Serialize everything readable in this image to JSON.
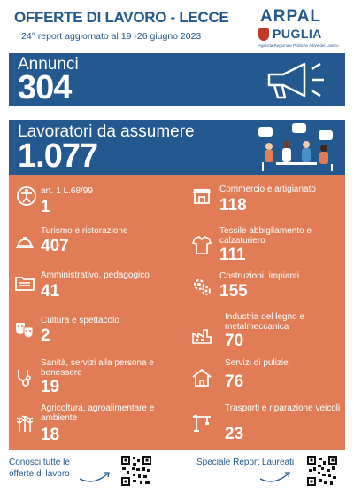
{
  "header": {
    "title": "OFFERTE DI LAVORO - LECCE",
    "subtitle": "24° report aggiornato al 19 -26 giugno 2023",
    "logo_arpal": "ARPAL",
    "logo_puglia": "PUGLIA",
    "logo_sub": "Agenzia Regionale Politiche Attive del Lavoro"
  },
  "annunci": {
    "label": "Annunci",
    "value": "304",
    "icon": "megaphone-icon"
  },
  "lavoratori": {
    "label": "Lavoratori da assumere",
    "value": "1.077",
    "icon": "people-meeting-icon"
  },
  "sectors_left": [
    {
      "label": "art. 1 L.68/99",
      "value": "1",
      "icon": "accessibility-icon"
    },
    {
      "label": "Turismo e ristorazione",
      "value": "407",
      "icon": "hotel-bell-icon"
    },
    {
      "label": "Amministrativo, pedagogico",
      "value": "41",
      "icon": "folder-icon"
    },
    {
      "label": "Cultura e spettacolo",
      "value": "2",
      "icon": "theater-masks-icon"
    },
    {
      "label": "Sanità, servizi alla persona e benessere",
      "value": "19",
      "icon": "stethoscope-icon"
    },
    {
      "label": "Agricoltura,  agroalimentare e ambiente",
      "value": "18",
      "icon": "wheat-icon"
    }
  ],
  "sectors_right": [
    {
      "label": "Commercio e artigianato",
      "value": "118",
      "icon": "shop-icon"
    },
    {
      "label": "Tessile abbigliamento e calzaturiero",
      "value": "111",
      "icon": "clothing-icon"
    },
    {
      "label": "Costruzioni, impianti",
      "value": "155",
      "icon": "gears-icon"
    },
    {
      "label": "Industria del legno e metalmeccanica",
      "value": "70",
      "icon": "factory-icon"
    },
    {
      "label": "Servizi di pulizie",
      "value": "76",
      "icon": "cleaning-house-icon"
    },
    {
      "label": "Trasporti e riparazione veicoli",
      "value": "23",
      "icon": "crane-icon"
    }
  ],
  "footer": {
    "left_text_1": "Conosci  tutte le",
    "left_text_2": "offerte di lavoro",
    "right_text": "Speciale Report  Laureati"
  },
  "colors": {
    "blue": "#23598f",
    "orange": "#e07d57",
    "white": "#ffffff"
  }
}
